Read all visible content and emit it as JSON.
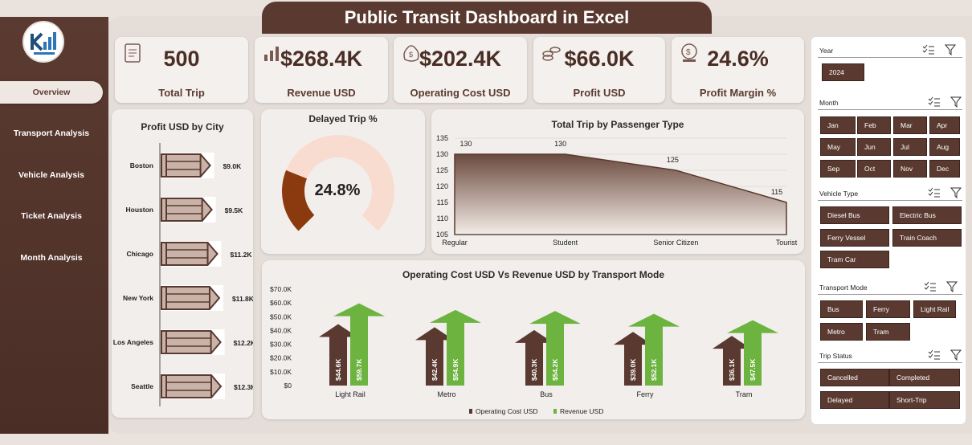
{
  "title": "Public Transit Dashboard in Excel",
  "nav": [
    {
      "label": "Overview",
      "active": true
    },
    {
      "label": "Transport Analysis",
      "active": false
    },
    {
      "label": "Vehicle Analysis",
      "active": false
    },
    {
      "label": "Ticket Analysis",
      "active": false
    },
    {
      "label": "Month Analysis",
      "active": false
    }
  ],
  "kpis": [
    {
      "value": "500",
      "label": "Total Trip",
      "icon": "clipboard-icon"
    },
    {
      "value": "$268.4K",
      "label": "Revenue USD",
      "icon": "revenue-chart-icon"
    },
    {
      "value": "$202.4K",
      "label": "Operating Cost USD",
      "icon": "money-bag-icon"
    },
    {
      "value": "$66.0K",
      "label": "Profit USD",
      "icon": "coins-icon"
    },
    {
      "value": "24.6%",
      "label": "Profit Margin %",
      "icon": "coins-stack-icon"
    }
  ],
  "colors": {
    "brand": "#5a3a30",
    "light": "#f2eeeb",
    "green": "#6db33f",
    "orange": "#8b3a0f",
    "peach": "#f9dcd0"
  },
  "profit_by_city": {
    "title": "Profit USD by City",
    "chart_data": {
      "type": "bar",
      "categories": [
        "Boston",
        "Houston",
        "Chicago",
        "New York",
        "Los Angeles",
        "Seattle"
      ],
      "values": [
        9.0,
        9.5,
        11.2,
        11.8,
        12.2,
        12.3
      ],
      "labels": [
        "$9.0K",
        "$9.5K",
        "$11.2K",
        "$11.8K",
        "$12.2K",
        "$12.3K"
      ]
    }
  },
  "delayed": {
    "title": "Delayed Trip %",
    "value_label": "24.8%",
    "chart_data": {
      "type": "pie",
      "values": [
        24.8,
        75.2
      ]
    }
  },
  "passenger": {
    "title": "Total Trip by Passenger Type",
    "chart_data": {
      "type": "area",
      "categories": [
        "Regular",
        "Student",
        "Senior Citizen",
        "Tourist"
      ],
      "values": [
        130,
        130,
        125,
        115
      ],
      "ylim": [
        105,
        135
      ],
      "yticks": [
        105,
        110,
        115,
        120,
        125,
        130,
        135
      ]
    }
  },
  "opcost": {
    "title": "Operating Cost USD Vs Revenue USD by Transport Mode",
    "chart_data": {
      "type": "bar",
      "categories": [
        "Light Rail",
        "Metro",
        "Bus",
        "Ferry",
        "Tram"
      ],
      "series": [
        {
          "name": "Operating Cost USD",
          "values": [
            44.6,
            42.4,
            40.3,
            39.0,
            36.1
          ],
          "labels": [
            "$44.6K",
            "$42.4K",
            "$40.3K",
            "$39.0K",
            "$36.1K"
          ]
        },
        {
          "name": "Revenue USD",
          "values": [
            59.7,
            54.9,
            54.2,
            52.1,
            47.5
          ],
          "labels": [
            "$59.7K",
            "$54.9K",
            "$54.2K",
            "$52.1K",
            "$47.5K"
          ]
        }
      ],
      "ylim": [
        0,
        70
      ],
      "yticks": [
        "$0",
        "$10.0K",
        "$20.0K",
        "$30.0K",
        "$40.0K",
        "$50.0K",
        "$60.0K",
        "$70.0K"
      ]
    }
  },
  "filters": {
    "year": {
      "title": "Year",
      "items": [
        "2024"
      ]
    },
    "month": {
      "title": "Month",
      "items": [
        "Jan",
        "Feb",
        "Mar",
        "Apr",
        "May",
        "Jun",
        "Jul",
        "Aug",
        "Sep",
        "Oct",
        "Nov",
        "Dec"
      ]
    },
    "vehicle": {
      "title": "Vehicle Type",
      "items": [
        "Diesel Bus",
        "Electric Bus",
        "Ferry Vessel",
        "Train Coach",
        "Tram Car"
      ]
    },
    "mode": {
      "title": "Transport Mode",
      "items": [
        "Bus",
        "Ferry",
        "Light Rail",
        "Metro",
        "Tram"
      ]
    },
    "status": {
      "title": "Trip Status",
      "items": [
        "Cancelled",
        "Completed",
        "Delayed",
        "Short-Trip"
      ]
    }
  }
}
